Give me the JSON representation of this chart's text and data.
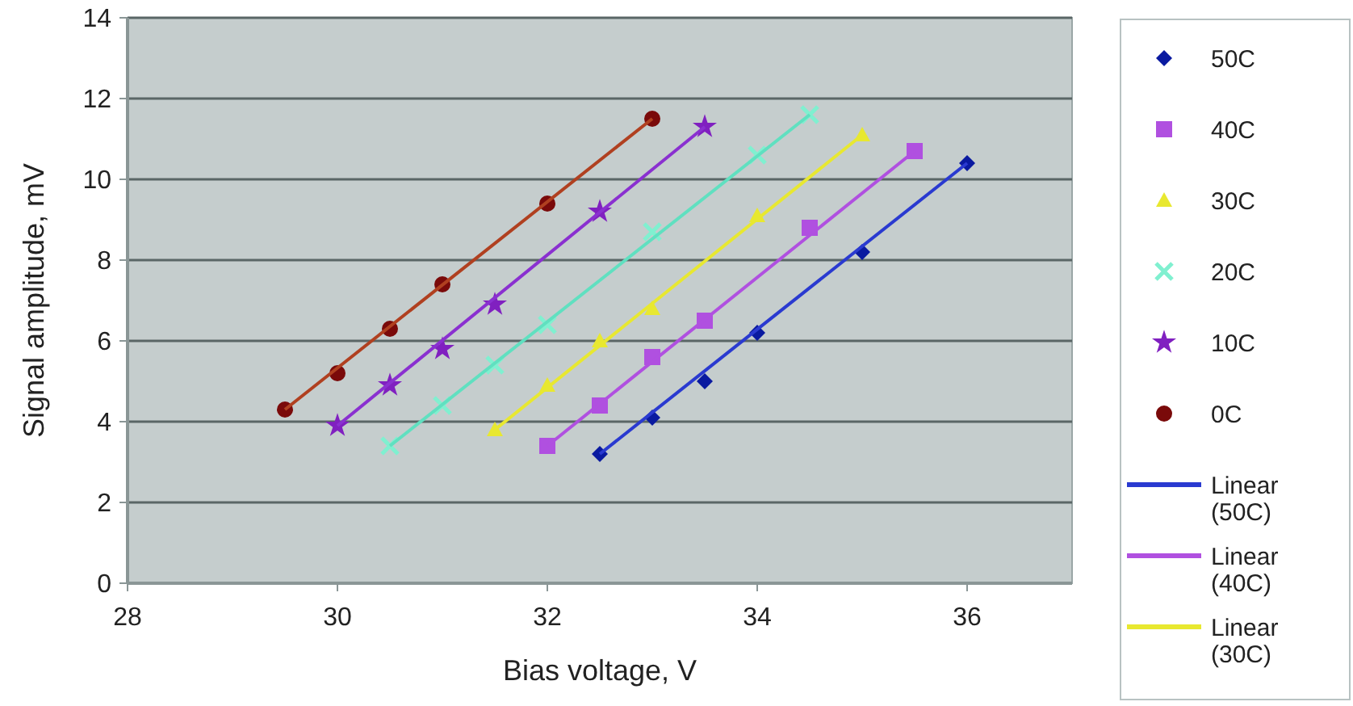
{
  "chart_data": {
    "type": "scatter",
    "xlabel": "Bias voltage, V",
    "ylabel": "Signal amplitude, mV",
    "xlim": [
      28,
      37
    ],
    "xticks": [
      28,
      30,
      32,
      34,
      36
    ],
    "ylim": [
      0,
      14
    ],
    "yticks": [
      0,
      2,
      4,
      6,
      8,
      10,
      12,
      14
    ],
    "grid": "y",
    "legend": "right",
    "series": [
      {
        "name": "50C",
        "color": "#0a1aa0",
        "marker": "diamond",
        "x": [
          32.5,
          33,
          33.5,
          34,
          35,
          36
        ],
        "values": [
          3.2,
          4.1,
          5.0,
          6.2,
          8.2,
          10.4
        ]
      },
      {
        "name": "40C",
        "color": "#b050e0",
        "marker": "square",
        "x": [
          32,
          32.5,
          33,
          33.5,
          34.5,
          35.5
        ],
        "values": [
          3.4,
          4.4,
          5.6,
          6.5,
          8.8,
          10.7
        ]
      },
      {
        "name": "30C",
        "color": "#e8e830",
        "marker": "triangle",
        "x": [
          31.5,
          32,
          32.5,
          33,
          34,
          35
        ],
        "values": [
          3.8,
          4.9,
          6.0,
          6.8,
          9.1,
          11.1
        ]
      },
      {
        "name": "20C",
        "color": "#80f0d0",
        "marker": "cross",
        "x": [
          30.5,
          31,
          31.5,
          32,
          33,
          34,
          34.5
        ],
        "values": [
          3.4,
          4.4,
          5.4,
          6.4,
          8.7,
          10.6,
          11.6
        ]
      },
      {
        "name": "10C",
        "color": "#8020c0",
        "marker": "star",
        "x": [
          30,
          30.5,
          31,
          31.5,
          32.5,
          33.5
        ],
        "values": [
          3.9,
          4.9,
          5.8,
          6.9,
          9.2,
          11.3
        ]
      },
      {
        "name": "0C",
        "color": "#7a0a0a",
        "marker": "circle",
        "x": [
          29.5,
          30,
          30.5,
          31,
          32,
          33
        ],
        "values": [
          4.3,
          5.2,
          6.3,
          7.4,
          9.4,
          11.5
        ]
      },
      {
        "name": "Linear (50C)",
        "type": "line",
        "color": "#2a3ad0",
        "marker": "none",
        "x": [
          32.5,
          36
        ],
        "values": [
          3.2,
          10.4
        ]
      },
      {
        "name": "Linear (40C)",
        "type": "line",
        "color": "#b050e0",
        "marker": "none",
        "x": [
          32,
          35.5
        ],
        "values": [
          3.4,
          10.7
        ]
      },
      {
        "name": "Linear (30C)",
        "type": "line",
        "color": "#e8e830",
        "marker": "none",
        "x": [
          31.5,
          35
        ],
        "values": [
          3.8,
          11.1
        ]
      },
      {
        "type": "line",
        "color": "#60e0c0",
        "marker": "none",
        "x": [
          30.5,
          34.5
        ],
        "values": [
          3.4,
          11.6
        ]
      },
      {
        "type": "line",
        "color": "#8a30d0",
        "marker": "none",
        "x": [
          30,
          33.5
        ],
        "values": [
          3.9,
          11.3
        ]
      },
      {
        "type": "line",
        "color": "#b04020",
        "marker": "none",
        "x": [
          29.5,
          33
        ],
        "values": [
          4.3,
          11.5
        ]
      }
    ]
  }
}
